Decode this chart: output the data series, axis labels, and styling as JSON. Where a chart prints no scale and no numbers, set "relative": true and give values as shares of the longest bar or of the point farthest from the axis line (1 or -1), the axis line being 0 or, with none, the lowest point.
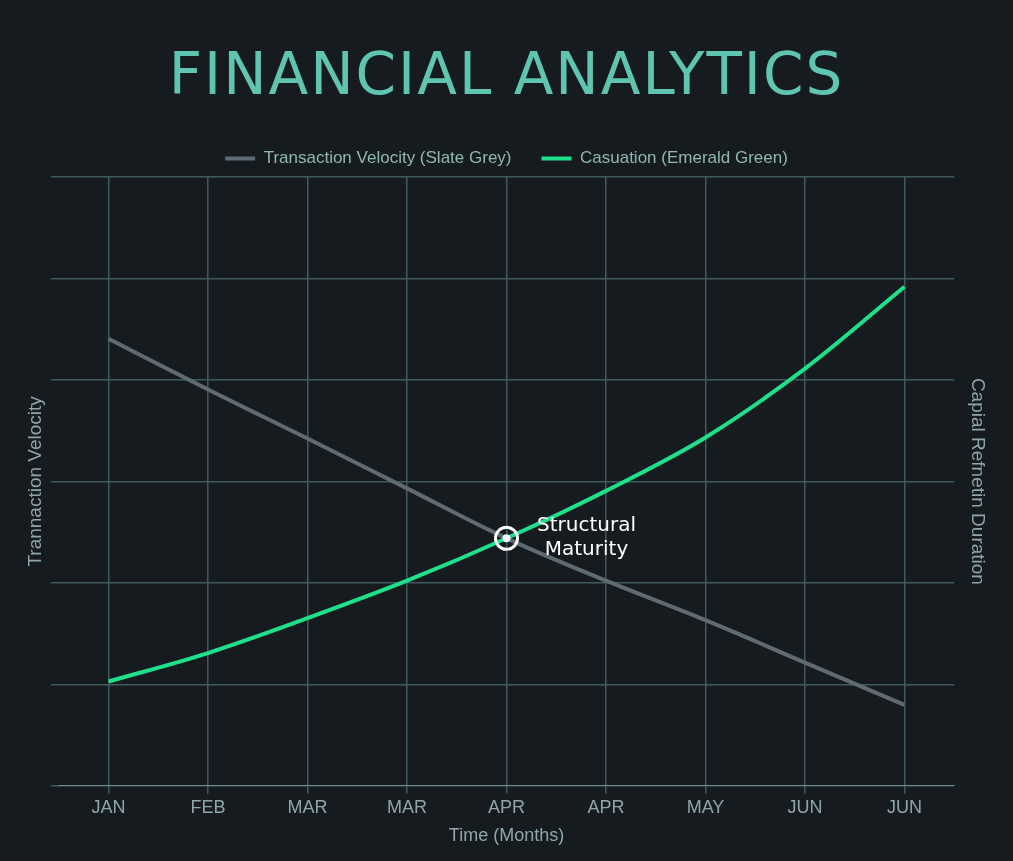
{
  "chart_data": {
    "type": "line",
    "title": "FINANCIAL ANALYTICS",
    "xlabel": "Time (Months)",
    "ylabel": "Trannaction Velocity",
    "y2label": "Capial Refnetin Duration",
    "relative": true,
    "grid": true,
    "legend": "top",
    "marker": "none",
    "line_style": "solid",
    "categories": [
      "JAN",
      "FEB",
      "MAR",
      "MAR",
      "APR",
      "APR",
      "MAY",
      "JUN",
      "JUN"
    ],
    "series": [
      {
        "name": "Transaction Velocity (Slate Grey)",
        "color": "#5f6b73",
        "values": [
          0.896,
          0.794,
          0.696,
          0.596,
          0.496,
          0.411,
          0.332,
          0.247,
          0.162
        ]
      },
      {
        "name": "Casuation (Emerald Green)",
        "color": "#1fe08a",
        "values": [
          0.209,
          0.266,
          0.336,
          0.411,
          0.496,
          0.591,
          0.698,
          0.836,
          1
        ]
      }
    ],
    "annotations": [
      {
        "text": "Structural Maturity",
        "x": "APR",
        "y": 0.496
      }
    ]
  }
}
